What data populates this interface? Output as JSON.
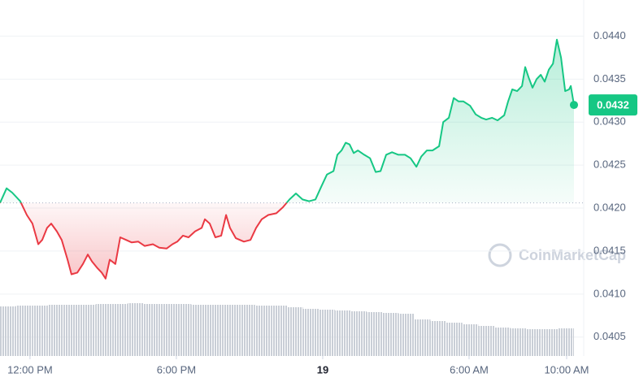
{
  "chart_data": {
    "type": "line",
    "x": [
      10.77,
      11.04,
      11.27,
      11.6,
      11.87,
      12.1,
      12.34,
      12.5,
      12.7,
      12.87,
      13.1,
      13.3,
      13.54,
      13.7,
      13.94,
      14.17,
      14.37,
      14.54,
      14.77,
      14.94,
      15.1,
      15.27,
      15.5,
      15.7,
      15.94,
      16.17,
      16.44,
      16.7,
      17.04,
      17.3,
      17.6,
      17.84,
      18.04,
      18.27,
      18.5,
      18.77,
      19.04,
      19.17,
      19.37,
      19.6,
      19.84,
      20.04,
      20.2,
      20.44,
      20.77,
      21.04,
      21.27,
      21.5,
      21.77,
      22.1,
      22.37,
      22.64,
      22.9,
      23.17,
      23.44,
      23.7,
      23.94,
      24.17,
      24.44,
      24.6,
      24.77,
      24.94,
      25.1,
      25.27,
      25.44,
      25.7,
      25.94,
      26.17,
      26.37,
      26.6,
      26.84,
      27.1,
      27.37,
      27.6,
      27.84,
      28.04,
      28.27,
      28.5,
      28.77,
      28.94,
      29.17,
      29.37,
      29.57,
      29.77,
      30.04,
      30.27,
      30.5,
      30.7,
      30.94,
      31.17,
      31.44,
      31.6,
      31.77,
      31.97,
      32.17,
      32.3,
      32.44,
      32.6,
      32.77,
      32.94,
      33.1,
      33.27,
      33.44,
      33.6,
      33.77,
      33.94,
      34.1,
      34.17,
      34.3
    ],
    "values": [
      0.04206,
      0.04223,
      0.04218,
      0.04208,
      0.04192,
      0.04182,
      0.04158,
      0.04163,
      0.04177,
      0.04182,
      0.04173,
      0.04163,
      0.0414,
      0.04123,
      0.04125,
      0.04135,
      0.04146,
      0.04138,
      0.0413,
      0.04125,
      0.04118,
      0.0414,
      0.04135,
      0.04166,
      0.04163,
      0.0416,
      0.04161,
      0.04156,
      0.04158,
      0.04154,
      0.04153,
      0.04158,
      0.04161,
      0.04168,
      0.04166,
      0.04173,
      0.04177,
      0.04187,
      0.04182,
      0.04166,
      0.04168,
      0.04192,
      0.04177,
      0.04165,
      0.04161,
      0.04163,
      0.04177,
      0.04187,
      0.04192,
      0.04194,
      0.04201,
      0.0421,
      0.04217,
      0.0421,
      0.04208,
      0.0421,
      0.04225,
      0.04239,
      0.04243,
      0.04262,
      0.04267,
      0.04276,
      0.04274,
      0.04264,
      0.04267,
      0.04262,
      0.04258,
      0.04242,
      0.04243,
      0.04262,
      0.04265,
      0.04262,
      0.04262,
      0.04258,
      0.04248,
      0.0426,
      0.04267,
      0.04267,
      0.04272,
      0.043,
      0.04305,
      0.04328,
      0.04324,
      0.04324,
      0.04319,
      0.04309,
      0.04305,
      0.04303,
      0.04305,
      0.04302,
      0.04308,
      0.04324,
      0.04338,
      0.04336,
      0.04342,
      0.04364,
      0.04352,
      0.0434,
      0.0435,
      0.04355,
      0.04347,
      0.04361,
      0.04368,
      0.04396,
      0.04375,
      0.04336,
      0.04338,
      0.04342,
      0.0432
    ],
    "up_color": "#16c784",
    "down_color": "#ea3943",
    "reference_price": 0.04206,
    "current_price": 0.0432,
    "xlim": [
      10.77,
      34.7
    ],
    "xticks": [
      {
        "value": 12,
        "label": "12:00 PM"
      },
      {
        "value": 18,
        "label": "6:00 PM"
      },
      {
        "value": 24,
        "label": "19"
      },
      {
        "value": 30,
        "label": "6:00 AM"
      },
      {
        "value": 34,
        "label": "10:00 AM"
      }
    ],
    "ylim": [
      0.04028,
      0.04442
    ],
    "yticks": [
      {
        "value": 0.044,
        "label": "0.0440"
      },
      0.0435,
      {
        "value": 0.043,
        "label": "0.0430"
      },
      0.0425,
      {
        "value": 0.042,
        "label": "0.0420"
      },
      0.0415,
      {
        "value": 0.041,
        "label": "0.0410"
      },
      0.0405
    ],
    "grid": true,
    "volume": {
      "color": "#c5cad3",
      "values": [
        61,
        62,
        62,
        63,
        63,
        63,
        64,
        64,
        65,
        64,
        64,
        64,
        63,
        63,
        63,
        63,
        62,
        62,
        60,
        58,
        57,
        56,
        55,
        54,
        53,
        52,
        45,
        43,
        41,
        39,
        37,
        35,
        34,
        33,
        33,
        34
      ]
    },
    "watermark": "CoinMarketCap"
  }
}
